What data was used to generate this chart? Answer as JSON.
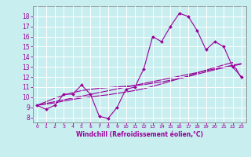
{
  "title": "",
  "xlabel": "Windchill (Refroidissement éolien,°C)",
  "ylabel": "",
  "bg_color": "#c8eef0",
  "line_color": "#990099",
  "grid_color": "#ffffff",
  "spine_color": "#888888",
  "x_data": [
    0,
    1,
    2,
    3,
    4,
    5,
    6,
    7,
    8,
    9,
    10,
    11,
    12,
    13,
    14,
    15,
    16,
    17,
    18,
    19,
    20,
    21,
    22,
    23
  ],
  "y_main": [
    9.2,
    8.8,
    9.2,
    10.3,
    10.3,
    11.2,
    10.3,
    8.1,
    7.9,
    9.0,
    10.8,
    11.0,
    12.8,
    16.0,
    15.5,
    17.0,
    18.3,
    18.0,
    16.6,
    14.7,
    15.5,
    15.0,
    13.0,
    12.0
  ],
  "y_reg1": [
    9.2,
    9.38,
    9.56,
    9.74,
    9.92,
    10.1,
    10.28,
    10.46,
    10.64,
    10.82,
    11.0,
    11.18,
    11.36,
    11.54,
    11.72,
    11.9,
    12.08,
    12.26,
    12.44,
    12.62,
    12.8,
    12.98,
    13.16,
    13.34
  ],
  "y_reg2": [
    9.2,
    9.55,
    9.9,
    10.2,
    10.45,
    10.65,
    10.78,
    10.88,
    10.95,
    11.02,
    11.08,
    11.15,
    11.25,
    11.38,
    11.52,
    11.68,
    11.85,
    12.05,
    12.28,
    12.5,
    12.72,
    12.92,
    13.1,
    13.28
  ],
  "y_reg3": [
    9.2,
    9.32,
    9.44,
    9.62,
    9.78,
    9.92,
    10.04,
    10.14,
    10.24,
    10.38,
    10.52,
    10.66,
    10.84,
    11.08,
    11.32,
    11.58,
    11.84,
    12.1,
    12.4,
    12.68,
    12.95,
    13.2,
    13.44,
    11.85
  ],
  "ylim": [
    7.5,
    19.0
  ],
  "xlim": [
    -0.5,
    23.5
  ],
  "yticks": [
    8,
    9,
    10,
    11,
    12,
    13,
    14,
    15,
    16,
    17,
    18
  ],
  "xticks": [
    0,
    1,
    2,
    3,
    4,
    5,
    6,
    7,
    8,
    9,
    10,
    11,
    12,
    13,
    14,
    15,
    16,
    17,
    18,
    19,
    20,
    21,
    22,
    23
  ]
}
